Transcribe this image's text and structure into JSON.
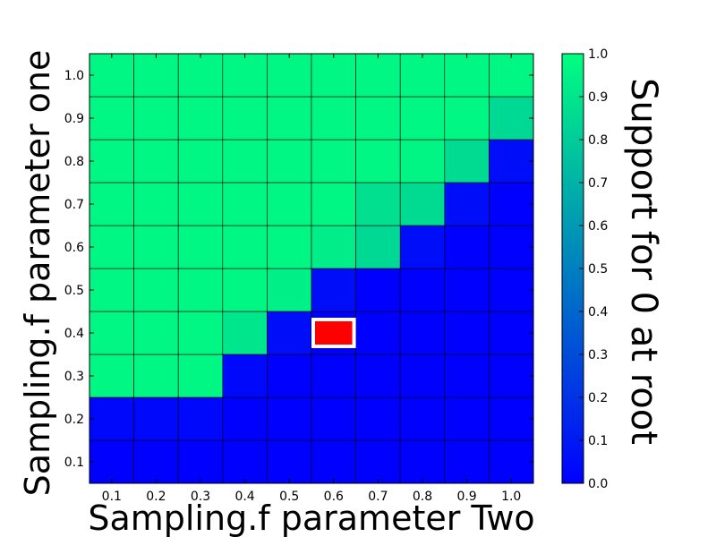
{
  "chart_data": {
    "type": "heatmap",
    "title": "",
    "xlabel": "Sampling.f parameter Two",
    "ylabel": "Sampling.f parameter one",
    "x": [
      0.1,
      0.2,
      0.3,
      0.4,
      0.5,
      0.6,
      0.7,
      0.8,
      0.9,
      1.0
    ],
    "y": [
      0.1,
      0.2,
      0.3,
      0.4,
      0.5,
      0.6,
      0.7,
      0.8,
      0.9,
      1.0
    ],
    "x_tick_labels": [
      "0.1",
      "0.2",
      "0.3",
      "0.4",
      "0.5",
      "0.6",
      "0.7",
      "0.8",
      "0.9",
      "1.0"
    ],
    "y_tick_labels": [
      "0.1",
      "0.2",
      "0.3",
      "0.4",
      "0.5",
      "0.6",
      "0.7",
      "0.8",
      "0.9",
      "1.0"
    ],
    "z": [
      [
        0.0,
        0.0,
        0.0,
        0.0,
        0.0,
        0.0,
        0.0,
        0.0,
        0.0,
        0.0
      ],
      [
        0.03,
        0.03,
        0.03,
        0.0,
        0.0,
        0.0,
        0.0,
        0.0,
        0.0,
        0.0
      ],
      [
        0.97,
        0.97,
        0.97,
        0.03,
        0.0,
        0.0,
        0.0,
        0.0,
        0.0,
        0.0
      ],
      [
        0.97,
        0.97,
        0.97,
        0.9,
        0.05,
        null,
        0.0,
        0.0,
        0.0,
        0.0
      ],
      [
        0.97,
        0.97,
        0.97,
        0.97,
        0.94,
        0.05,
        0.0,
        0.0,
        0.0,
        0.0
      ],
      [
        0.97,
        0.97,
        0.97,
        0.97,
        0.97,
        0.93,
        0.85,
        0.05,
        0.0,
        0.0
      ],
      [
        0.97,
        0.97,
        0.97,
        0.97,
        0.97,
        0.97,
        0.88,
        0.86,
        0.05,
        0.0
      ],
      [
        0.97,
        0.97,
        0.97,
        0.97,
        0.97,
        0.97,
        0.97,
        0.96,
        0.86,
        0.05
      ],
      [
        0.97,
        0.97,
        0.97,
        0.97,
        0.97,
        0.97,
        0.97,
        0.97,
        0.97,
        0.85
      ],
      [
        0.97,
        0.97,
        0.97,
        0.97,
        0.97,
        0.97,
        0.97,
        0.97,
        0.97,
        0.97
      ]
    ],
    "highlight": {
      "x": 0.6,
      "y": 0.4,
      "color": "#ff0000",
      "border": "#ffffff"
    },
    "colorbar": {
      "label": "Support for 0 at root",
      "min": 0.0,
      "max": 1.0,
      "ticks": [
        "0.0",
        "0.1",
        "0.2",
        "0.3",
        "0.4",
        "0.5",
        "0.6",
        "0.7",
        "0.8",
        "0.9",
        "1.0"
      ],
      "colormap": "winter",
      "color_low": "#0000ff",
      "color_high": "#00ff80"
    },
    "grid": true,
    "colors": {
      "gridline": "#000000",
      "frame": "#000000"
    }
  }
}
